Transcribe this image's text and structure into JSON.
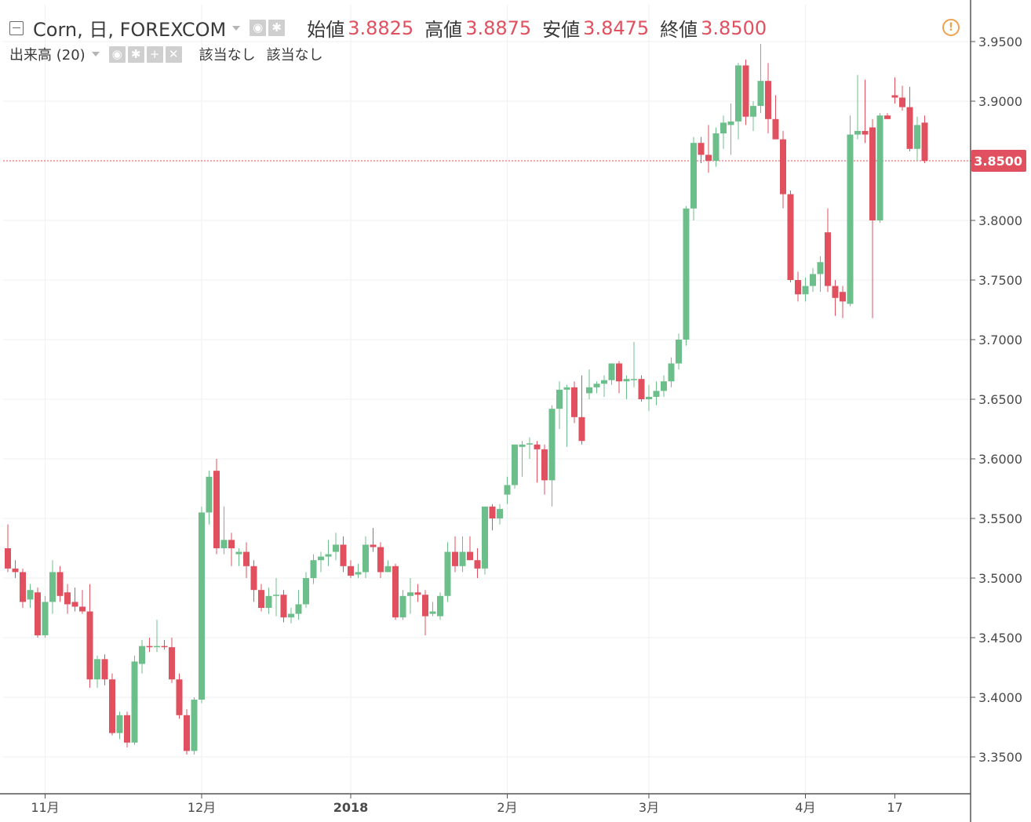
{
  "legend": {
    "symbol": "Corn, 日, FOREXCOM",
    "open_label": "始値",
    "open_value": "3.8825",
    "high_label": "高値",
    "high_value": "3.8875",
    "low_label": "安値",
    "low_value": "3.8475",
    "close_label": "終値",
    "close_value": "3.8500",
    "volume_title": "出来高 (20)",
    "volume_na_1": "該当なし",
    "volume_na_2": "該当なし",
    "icons": [
      "collapse-icon",
      "eye-icon",
      "gear-icon",
      "plus-icon",
      "close-icon",
      "alert-icon"
    ]
  },
  "colors": {
    "up": "#6cbf8a",
    "down": "#e0505e",
    "grid": "#eef0f2",
    "axis_text": "#4a4a4a",
    "price_line": "#e0505e"
  },
  "chart_data": {
    "type": "candlestick",
    "title": "Corn, 日, FOREXCOM",
    "last_price": 3.85,
    "last_price_label": "3.8500",
    "ylim": [
      3.32,
      3.96
    ],
    "y_ticks": [
      3.35,
      3.4,
      3.45,
      3.5,
      3.55,
      3.6,
      3.65,
      3.7,
      3.75,
      3.8,
      3.85,
      3.9,
      3.95
    ],
    "y_tick_labels": [
      "3.3500",
      "3.4000",
      "3.4500",
      "3.5000",
      "3.5500",
      "3.6000",
      "3.6500",
      "3.7000",
      "3.7500",
      "3.8000",
      "3.8500",
      "3.9000",
      "3.9500"
    ],
    "x_ticks": [
      {
        "label": "11月",
        "bar": 5,
        "bold": false
      },
      {
        "label": "12月",
        "bar": 26,
        "bold": false
      },
      {
        "label": "2018",
        "bar": 46,
        "bold": true
      },
      {
        "label": "2月",
        "bar": 67,
        "bold": false
      },
      {
        "label": "3月",
        "bar": 86,
        "bold": false
      },
      {
        "label": "4月",
        "bar": 107,
        "bold": false
      },
      {
        "label": "17",
        "bar": 119,
        "bold": false
      }
    ],
    "grid": true,
    "candles": [
      [
        3.525,
        3.545,
        3.505,
        3.508
      ],
      [
        3.508,
        3.515,
        3.5,
        3.505
      ],
      [
        3.505,
        3.508,
        3.475,
        3.48
      ],
      [
        3.482,
        3.495,
        3.475,
        3.49
      ],
      [
        3.488,
        3.492,
        3.45,
        3.452
      ],
      [
        3.452,
        3.485,
        3.45,
        3.48
      ],
      [
        3.48,
        3.515,
        3.47,
        3.505
      ],
      [
        3.505,
        3.51,
        3.48,
        3.485
      ],
      [
        3.488,
        3.495,
        3.47,
        3.478
      ],
      [
        3.48,
        3.492,
        3.472,
        3.476
      ],
      [
        3.476,
        3.49,
        3.47,
        3.472
      ],
      [
        3.472,
        3.495,
        3.408,
        3.415
      ],
      [
        3.415,
        3.435,
        3.408,
        3.432
      ],
      [
        3.432,
        3.436,
        3.41,
        3.415
      ],
      [
        3.415,
        3.42,
        3.368,
        3.37
      ],
      [
        3.37,
        3.388,
        3.365,
        3.385
      ],
      [
        3.385,
        3.388,
        3.358,
        3.362
      ],
      [
        3.362,
        3.435,
        3.36,
        3.43
      ],
      [
        3.428,
        3.448,
        3.42,
        3.443
      ],
      [
        3.443,
        3.45,
        3.438,
        3.442
      ],
      [
        3.442,
        3.465,
        3.438,
        3.443
      ],
      [
        3.443,
        3.448,
        3.44,
        3.442
      ],
      [
        3.442,
        3.45,
        3.412,
        3.415
      ],
      [
        3.415,
        3.42,
        3.382,
        3.385
      ],
      [
        3.385,
        3.39,
        3.352,
        3.355
      ],
      [
        3.355,
        3.4,
        3.352,
        3.398
      ],
      [
        3.398,
        3.56,
        3.395,
        3.555
      ],
      [
        3.555,
        3.59,
        3.545,
        3.585
      ],
      [
        3.59,
        3.6,
        3.52,
        3.525
      ],
      [
        3.525,
        3.56,
        3.52,
        3.532
      ],
      [
        3.532,
        3.538,
        3.51,
        3.525
      ],
      [
        3.52,
        3.525,
        3.51,
        3.522
      ],
      [
        3.522,
        3.53,
        3.5,
        3.51
      ],
      [
        3.51,
        3.515,
        3.48,
        3.49
      ],
      [
        3.49,
        3.495,
        3.472,
        3.475
      ],
      [
        3.475,
        3.492,
        3.47,
        3.485
      ],
      [
        3.485,
        3.5,
        3.468,
        3.486
      ],
      [
        3.486,
        3.49,
        3.463,
        3.467
      ],
      [
        3.467,
        3.475,
        3.462,
        3.47
      ],
      [
        3.47,
        3.49,
        3.465,
        3.478
      ],
      [
        3.478,
        3.505,
        3.475,
        3.5
      ],
      [
        3.5,
        3.52,
        3.495,
        3.515
      ],
      [
        3.515,
        3.522,
        3.505,
        3.518
      ],
      [
        3.518,
        3.532,
        3.51,
        3.52
      ],
      [
        3.522,
        3.538,
        3.515,
        3.528
      ],
      [
        3.528,
        3.535,
        3.505,
        3.51
      ],
      [
        3.51,
        3.515,
        3.5,
        3.502
      ],
      [
        3.503,
        3.512,
        3.5,
        3.505
      ],
      [
        3.505,
        3.535,
        3.5,
        3.528
      ],
      [
        3.528,
        3.542,
        3.522,
        3.526
      ],
      [
        3.526,
        3.53,
        3.5,
        3.505
      ],
      [
        3.505,
        3.515,
        3.505,
        3.51
      ],
      [
        3.51,
        3.512,
        3.465,
        3.467
      ],
      [
        3.467,
        3.49,
        3.465,
        3.485
      ],
      [
        3.485,
        3.5,
        3.47,
        3.488
      ],
      [
        3.488,
        3.495,
        3.48,
        3.486
      ],
      [
        3.486,
        3.49,
        3.452,
        3.468
      ],
      [
        3.47,
        3.48,
        3.468,
        3.472
      ],
      [
        3.468,
        3.488,
        3.465,
        3.485
      ],
      [
        3.485,
        3.53,
        3.48,
        3.522
      ],
      [
        3.522,
        3.535,
        3.505,
        3.51
      ],
      [
        3.51,
        3.535,
        3.505,
        3.522
      ],
      [
        3.522,
        3.535,
        3.515,
        3.515
      ],
      [
        3.515,
        3.525,
        3.5,
        3.508
      ],
      [
        3.508,
        3.555,
        3.503,
        3.56
      ],
      [
        3.56,
        3.562,
        3.54,
        3.55
      ],
      [
        3.55,
        3.562,
        3.545,
        3.558
      ],
      [
        3.57,
        3.585,
        3.562,
        3.578
      ],
      [
        3.578,
        3.612,
        3.575,
        3.612
      ],
      [
        3.61,
        3.615,
        3.585,
        3.612
      ],
      [
        3.612,
        3.618,
        3.6,
        3.613
      ],
      [
        3.612,
        3.615,
        3.58,
        3.608
      ],
      [
        3.608,
        3.612,
        3.57,
        3.582
      ],
      [
        3.582,
        3.645,
        3.56,
        3.642
      ],
      [
        3.642,
        3.665,
        3.625,
        3.658
      ],
      [
        3.658,
        3.662,
        3.61,
        3.66
      ],
      [
        3.66,
        3.665,
        3.63,
        3.635
      ],
      [
        3.635,
        3.67,
        3.612,
        3.615
      ],
      [
        3.655,
        3.675,
        3.65,
        3.66
      ],
      [
        3.66,
        3.665,
        3.655,
        3.663
      ],
      [
        3.663,
        3.67,
        3.652,
        3.666
      ],
      [
        3.666,
        3.68,
        3.662,
        3.68
      ],
      [
        3.68,
        3.682,
        3.655,
        3.665
      ],
      [
        3.665,
        3.67,
        3.65,
        3.667
      ],
      [
        3.667,
        3.698,
        3.66,
        3.667
      ],
      [
        3.667,
        3.67,
        3.648,
        3.65
      ],
      [
        3.65,
        3.662,
        3.64,
        3.652
      ],
      [
        3.652,
        3.665,
        3.645,
        3.657
      ],
      [
        3.657,
        3.67,
        3.652,
        3.665
      ],
      [
        3.665,
        3.685,
        3.66,
        3.68
      ],
      [
        3.68,
        3.705,
        3.675,
        3.7
      ],
      [
        3.7,
        3.812,
        3.695,
        3.81
      ],
      [
        3.81,
        3.87,
        3.8,
        3.865
      ],
      [
        3.865,
        3.87,
        3.848,
        3.855
      ],
      [
        3.855,
        3.88,
        3.84,
        3.85
      ],
      [
        3.85,
        3.878,
        3.845,
        3.873
      ],
      [
        3.873,
        3.888,
        3.86,
        3.882
      ],
      [
        3.88,
        3.898,
        3.855,
        3.883
      ],
      [
        3.883,
        3.932,
        3.868,
        3.93
      ],
      [
        3.93,
        3.935,
        3.88,
        3.887
      ],
      [
        3.887,
        3.9,
        3.875,
        3.896
      ],
      [
        3.896,
        3.948,
        3.89,
        3.917
      ],
      [
        3.917,
        3.932,
        3.873,
        3.885
      ],
      [
        3.885,
        3.905,
        3.87,
        3.868
      ],
      [
        3.868,
        3.875,
        3.81,
        3.822
      ],
      [
        3.822,
        3.825,
        3.748,
        3.75
      ],
      [
        3.75,
        3.757,
        3.732,
        3.738
      ],
      [
        3.738,
        3.752,
        3.732,
        3.745
      ],
      [
        3.745,
        3.76,
        3.74,
        3.755
      ],
      [
        3.755,
        3.77,
        3.74,
        3.765
      ],
      [
        3.79,
        3.81,
        3.74,
        3.745
      ],
      [
        3.745,
        3.75,
        3.72,
        3.735
      ],
      [
        3.74,
        3.745,
        3.718,
        3.732
      ],
      [
        3.73,
        3.888,
        3.728,
        3.872
      ],
      [
        3.872,
        3.922,
        3.868,
        3.875
      ],
      [
        3.875,
        3.918,
        3.865,
        3.872
      ],
      [
        3.878,
        3.885,
        3.718,
        3.8
      ],
      [
        3.8,
        3.89,
        3.798,
        3.888
      ],
      [
        3.888,
        3.89,
        3.885,
        3.885
      ],
      [
        3.905,
        3.92,
        3.898,
        3.903
      ],
      [
        3.903,
        3.913,
        3.892,
        3.895
      ],
      [
        3.895,
        3.912,
        3.858,
        3.86
      ],
      [
        3.86,
        3.887,
        3.85,
        3.88
      ],
      [
        3.882,
        3.888,
        3.848,
        3.85
      ]
    ]
  }
}
